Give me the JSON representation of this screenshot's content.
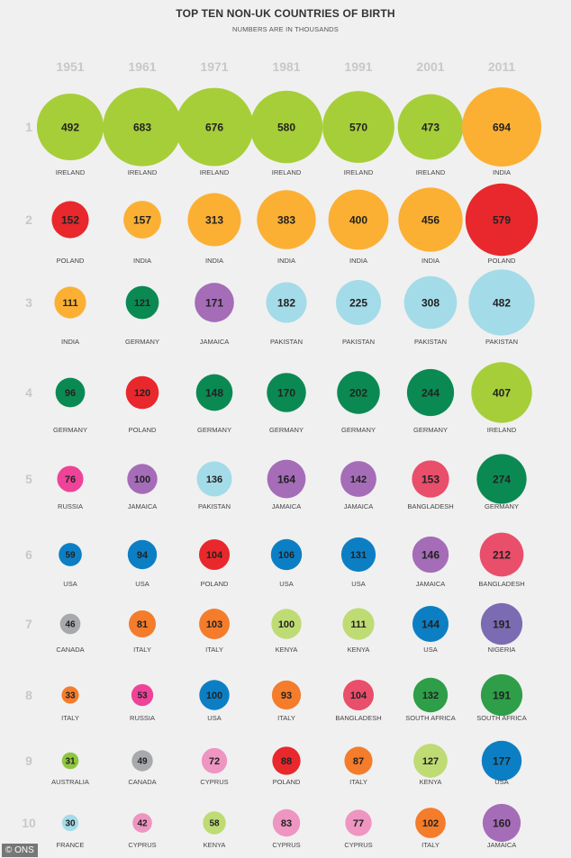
{
  "page": {
    "title": "TOP TEN NON-UK COUNTRIES OF BIRTH",
    "subtitle": "NUMBERS ARE IN THOUSANDS",
    "footer": "© ONS"
  },
  "colors": {
    "IRELAND": "#a6ce39",
    "INDIA": "#fbb034",
    "POLAND": "#e8282c",
    "GERMANY": "#0a8a52",
    "JAMAICA": "#a56cb8",
    "PAKISTAN": "#a4dbe8",
    "RUSSIA": "#ee4399",
    "USA": "#0c7fc4",
    "CANADA": "#a7a9ac",
    "ITALY": "#f47c2b",
    "AUSTRALIA": "#8dc63f",
    "FRANCE": "#a4dbe8",
    "CYPRUS": "#ee95c1",
    "KENYA": "#bfdb73",
    "BANGLADESH": "#e94e6b",
    "SOUTH AFRICA": "#2e9e48",
    "NIGERIA": "#7b6bb3"
  },
  "chart_data": {
    "type": "bubble-rank",
    "title": "TOP TEN NON-UK COUNTRIES OF BIRTH",
    "subtitle": "NUMBERS ARE IN THOUSANDS",
    "years": [
      "1951",
      "1961",
      "1971",
      "1981",
      "1991",
      "2001",
      "2011"
    ],
    "ranks": [
      "1",
      "2",
      "3",
      "4",
      "5",
      "6",
      "7",
      "8",
      "9",
      "10"
    ],
    "unit": "thousands",
    "columns": [
      {
        "year": "1951",
        "entries": [
          {
            "country": "IRELAND",
            "value": 492
          },
          {
            "country": "POLAND",
            "value": 152
          },
          {
            "country": "INDIA",
            "value": 111
          },
          {
            "country": "GERMANY",
            "value": 96
          },
          {
            "country": "RUSSIA",
            "value": 76
          },
          {
            "country": "USA",
            "value": 59
          },
          {
            "country": "CANADA",
            "value": 46
          },
          {
            "country": "ITALY",
            "value": 33
          },
          {
            "country": "AUSTRALIA",
            "value": 31
          },
          {
            "country": "FRANCE",
            "value": 30
          }
        ]
      },
      {
        "year": "1961",
        "entries": [
          {
            "country": "IRELAND",
            "value": 683
          },
          {
            "country": "INDIA",
            "value": 157
          },
          {
            "country": "GERMANY",
            "value": 121
          },
          {
            "country": "POLAND",
            "value": 120
          },
          {
            "country": "JAMAICA",
            "value": 100
          },
          {
            "country": "USA",
            "value": 94
          },
          {
            "country": "ITALY",
            "value": 81
          },
          {
            "country": "RUSSIA",
            "value": 53
          },
          {
            "country": "CANADA",
            "value": 49
          },
          {
            "country": "CYPRUS",
            "value": 42
          }
        ]
      },
      {
        "year": "1971",
        "entries": [
          {
            "country": "IRELAND",
            "value": 676
          },
          {
            "country": "INDIA",
            "value": 313
          },
          {
            "country": "JAMAICA",
            "value": 171
          },
          {
            "country": "GERMANY",
            "value": 148
          },
          {
            "country": "PAKISTAN",
            "value": 136
          },
          {
            "country": "POLAND",
            "value": 104
          },
          {
            "country": "ITALY",
            "value": 103
          },
          {
            "country": "USA",
            "value": 100
          },
          {
            "country": "CYPRUS",
            "value": 72
          },
          {
            "country": "KENYA",
            "value": 58
          }
        ]
      },
      {
        "year": "1981",
        "entries": [
          {
            "country": "IRELAND",
            "value": 580
          },
          {
            "country": "INDIA",
            "value": 383
          },
          {
            "country": "PAKISTAN",
            "value": 182
          },
          {
            "country": "GERMANY",
            "value": 170
          },
          {
            "country": "JAMAICA",
            "value": 164
          },
          {
            "country": "USA",
            "value": 106
          },
          {
            "country": "KENYA",
            "value": 100
          },
          {
            "country": "ITALY",
            "value": 93
          },
          {
            "country": "POLAND",
            "value": 88
          },
          {
            "country": "CYPRUS",
            "value": 83
          }
        ]
      },
      {
        "year": "1991",
        "entries": [
          {
            "country": "IRELAND",
            "value": 570
          },
          {
            "country": "INDIA",
            "value": 400
          },
          {
            "country": "PAKISTAN",
            "value": 225
          },
          {
            "country": "GERMANY",
            "value": 202
          },
          {
            "country": "JAMAICA",
            "value": 142
          },
          {
            "country": "USA",
            "value": 131
          },
          {
            "country": "KENYA",
            "value": 111
          },
          {
            "country": "BANGLADESH",
            "value": 104
          },
          {
            "country": "ITALY",
            "value": 87
          },
          {
            "country": "CYPRUS",
            "value": 77
          }
        ]
      },
      {
        "year": "2001",
        "entries": [
          {
            "country": "IRELAND",
            "value": 473
          },
          {
            "country": "INDIA",
            "value": 456
          },
          {
            "country": "PAKISTAN",
            "value": 308
          },
          {
            "country": "GERMANY",
            "value": 244
          },
          {
            "country": "BANGLADESH",
            "value": 153
          },
          {
            "country": "JAMAICA",
            "value": 146
          },
          {
            "country": "USA",
            "value": 144
          },
          {
            "country": "SOUTH AFRICA",
            "value": 132
          },
          {
            "country": "KENYA",
            "value": 127
          },
          {
            "country": "ITALY",
            "value": 102
          }
        ]
      },
      {
        "year": "2011",
        "entries": [
          {
            "country": "INDIA",
            "value": 694
          },
          {
            "country": "POLAND",
            "value": 579
          },
          {
            "country": "PAKISTAN",
            "value": 482
          },
          {
            "country": "IRELAND",
            "value": 407
          },
          {
            "country": "GERMANY",
            "value": 274
          },
          {
            "country": "BANGLADESH",
            "value": 212
          },
          {
            "country": "NIGERIA",
            "value": 191
          },
          {
            "country": "SOUTH AFRICA",
            "value": 191
          },
          {
            "country": "USA",
            "value": 177
          },
          {
            "country": "JAMAICA",
            "value": 160
          }
        ]
      }
    ]
  }
}
